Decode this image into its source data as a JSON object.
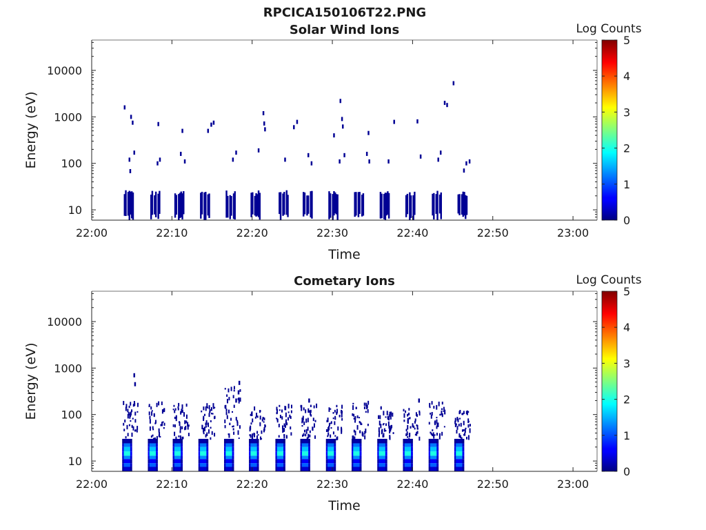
{
  "figure_title": "RPCICA150106T22.PNG",
  "chart_data": [
    {
      "type": "heatmap",
      "title": "Solar Wind Ions",
      "xlabel": "Time",
      "ylabel": "Energy (eV)",
      "y_scale": "log",
      "ylim": [
        6,
        45000
      ],
      "xlim": [
        "22:00",
        "23:03"
      ],
      "x_ticks": [
        "22:00",
        "22:10",
        "22:20",
        "22:30",
        "22:40",
        "22:50",
        "23:00"
      ],
      "y_ticks": [
        "10",
        "100",
        "1000",
        "10000"
      ],
      "colorbar": {
        "label": "Log Counts",
        "min": 0,
        "max": 5,
        "ticks": [
          "0",
          "1",
          "2",
          "3",
          "4",
          "5"
        ],
        "colormap": "jet"
      },
      "sweeps_start_min": [
        4.0,
        7.3,
        10.3,
        13.5,
        16.7,
        19.8,
        23.3,
        26.3,
        29.5,
        32.7,
        35.9,
        39.1,
        42.4,
        45.6
      ],
      "low_energy_band": {
        "e_min": 7,
        "e_max": 22,
        "log_counts": 0.1
      },
      "points": [
        [
          4.0,
          1600,
          0.1
        ],
        [
          4.8,
          1000,
          0.1
        ],
        [
          5.0,
          750,
          0.1
        ],
        [
          4.6,
          120,
          0.1
        ],
        [
          5.2,
          170,
          0.1
        ],
        [
          4.7,
          68,
          0.1
        ],
        [
          8.2,
          700,
          0.1
        ],
        [
          8.1,
          100,
          0.1
        ],
        [
          8.4,
          120,
          0.1
        ],
        [
          11.2,
          500,
          0.1
        ],
        [
          11.0,
          160,
          0.1
        ],
        [
          11.5,
          110,
          0.1
        ],
        [
          14.4,
          500,
          0.1
        ],
        [
          14.8,
          680,
          0.1
        ],
        [
          15.1,
          750,
          0.1
        ],
        [
          17.5,
          120,
          0.1
        ],
        [
          17.9,
          170,
          0.1
        ],
        [
          20.7,
          190,
          0.1
        ],
        [
          21.3,
          1200,
          0.1
        ],
        [
          21.4,
          720,
          0.1
        ],
        [
          21.5,
          540,
          0.1
        ],
        [
          24.0,
          120,
          0.1
        ],
        [
          25.1,
          600,
          0.1
        ],
        [
          25.5,
          780,
          0.1
        ],
        [
          26.9,
          150,
          0.1
        ],
        [
          27.3,
          100,
          0.1
        ],
        [
          30.1,
          400,
          0.1
        ],
        [
          30.9,
          2200,
          0.1
        ],
        [
          31.1,
          900,
          0.1
        ],
        [
          31.2,
          620,
          0.1
        ],
        [
          30.8,
          110,
          0.1
        ],
        [
          31.4,
          150,
          0.1
        ],
        [
          34.4,
          450,
          0.1
        ],
        [
          34.2,
          160,
          0.1
        ],
        [
          34.5,
          110,
          0.1
        ],
        [
          37.6,
          780,
          0.1
        ],
        [
          36.9,
          110,
          0.1
        ],
        [
          40.5,
          800,
          0.1
        ],
        [
          40.9,
          140,
          0.1
        ],
        [
          43.9,
          2000,
          0.1
        ],
        [
          44.2,
          1800,
          0.1
        ],
        [
          45.0,
          5300,
          0.1
        ],
        [
          43.1,
          120,
          0.1
        ],
        [
          43.4,
          170,
          0.1
        ],
        [
          46.3,
          70,
          0.1
        ],
        [
          46.6,
          100,
          0.1
        ],
        [
          47.0,
          110,
          0.1
        ]
      ]
    },
    {
      "type": "heatmap",
      "title": "Cometary Ions",
      "xlabel": "Time",
      "ylabel": "Energy (eV)",
      "y_scale": "log",
      "ylim": [
        6,
        45000
      ],
      "xlim": [
        "22:00",
        "23:03"
      ],
      "x_ticks": [
        "22:00",
        "22:10",
        "22:20",
        "22:30",
        "22:40",
        "22:50",
        "23:00"
      ],
      "y_ticks": [
        "10",
        "100",
        "1000",
        "10000"
      ],
      "colorbar": {
        "label": "Log Counts",
        "min": 0,
        "max": 5,
        "ticks": [
          "0",
          "1",
          "2",
          "3",
          "4",
          "5"
        ],
        "colormap": "jet"
      },
      "sweeps_start_min": [
        3.8,
        7.0,
        10.1,
        13.3,
        16.5,
        19.6,
        22.9,
        26.0,
        29.2,
        32.4,
        35.6,
        38.8,
        42.0,
        45.2
      ],
      "energy_profile": [
        {
          "e_min": 24,
          "e_max": 30,
          "log_counts": 0.2
        },
        {
          "e_min": 20,
          "e_max": 24,
          "log_counts": 1.2
        },
        {
          "e_min": 16,
          "e_max": 20,
          "log_counts": 1.6
        },
        {
          "e_min": 13,
          "e_max": 16,
          "log_counts": 2.0
        },
        {
          "e_min": 11,
          "e_max": 13,
          "log_counts": 1.3
        },
        {
          "e_min": 9,
          "e_max": 11,
          "log_counts": 0.6
        },
        {
          "e_min": 7.5,
          "e_max": 9,
          "log_counts": 1.1
        },
        {
          "e_min": 6,
          "e_max": 7.5,
          "log_counts": 0.4
        }
      ],
      "scatter_max_energy": [
        180,
        180,
        170,
        160,
        450,
        150,
        160,
        170,
        160,
        190,
        140,
        140,
        180,
        120
      ],
      "peak_points": [
        [
          5.2,
          700,
          0.1
        ],
        [
          5.3,
          450,
          0.1
        ],
        [
          18.3,
          480,
          0.1
        ],
        [
          18.2,
          300,
          0.1
        ],
        [
          17.9,
          200,
          0.1
        ],
        [
          40.7,
          200,
          0.1
        ],
        [
          27.0,
          200,
          0.1
        ]
      ]
    }
  ]
}
